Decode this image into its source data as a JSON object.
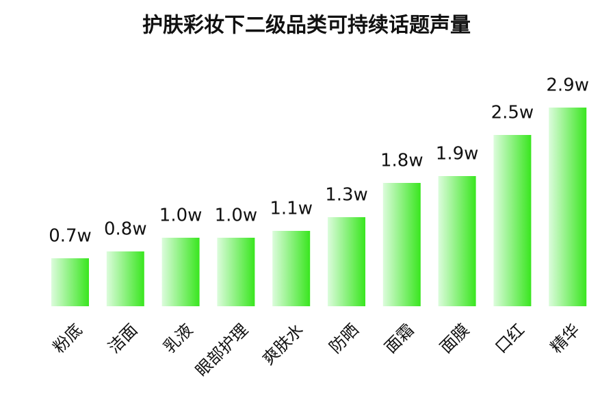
{
  "chart_data": {
    "type": "bar",
    "title": "护肤彩妆下二级品类可持续话题声量",
    "categories": [
      "粉底",
      "洁面",
      "乳液",
      "眼部护理",
      "爽肤水",
      "防晒",
      "面霜",
      "面膜",
      "口红",
      "精华"
    ],
    "values": [
      0.7,
      0.8,
      1.0,
      1.0,
      1.1,
      1.3,
      1.8,
      1.9,
      2.5,
      2.9
    ],
    "value_labels": [
      "0.7w",
      "0.8w",
      "1.0w",
      "1.0w",
      "1.1w",
      "1.3w",
      "1.8w",
      "1.9w",
      "2.5w",
      "2.9w"
    ],
    "color": "#39e61f"
  }
}
